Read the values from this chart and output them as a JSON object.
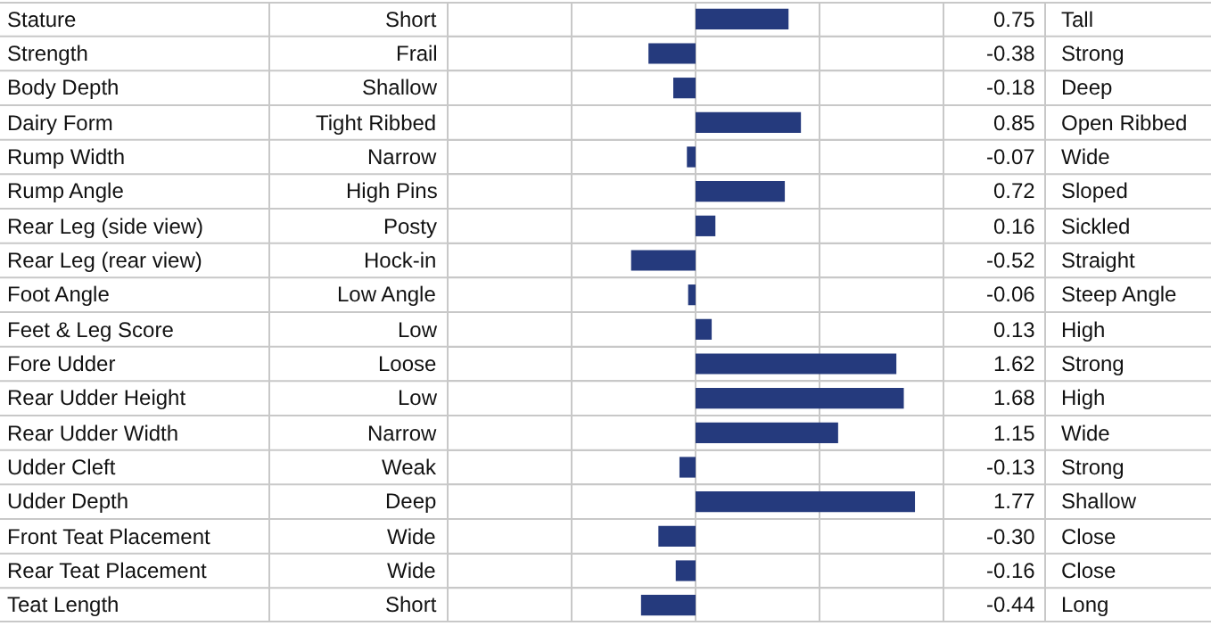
{
  "chart_data": {
    "type": "bar",
    "orientation": "horizontal",
    "categories": [
      "Stature",
      "Strength",
      "Body Depth",
      "Dairy Form",
      "Rump Width",
      "Rump Angle",
      "Rear Leg (side view)",
      "Rear Leg (rear view)",
      "Foot Angle",
      "Feet & Leg Score",
      "Fore Udder",
      "Rear Udder Height",
      "Rear Udder Width",
      "Udder Cleft",
      "Udder Depth",
      "Front Teat Placement",
      "Rear Teat Placement",
      "Teat Length"
    ],
    "values": [
      0.75,
      -0.38,
      -0.18,
      0.85,
      -0.07,
      0.72,
      0.16,
      -0.52,
      -0.06,
      0.13,
      1.62,
      1.68,
      1.15,
      -0.13,
      1.77,
      -0.3,
      -0.16,
      -0.44
    ],
    "value_labels": [
      "0.75",
      "-0.38",
      "-0.18",
      "0.85",
      "-0.07",
      "0.72",
      "0.16",
      "-0.52",
      "-0.06",
      "0.13",
      "1.62",
      "1.68",
      "1.15",
      "-0.13",
      "1.77",
      "-0.30",
      "-0.16",
      "-0.44"
    ],
    "annotations": [
      "Short",
      "Frail",
      "Shallow",
      "Tight Ribbed",
      "Narrow",
      "High Pins",
      "Posty",
      "Hock-in",
      "Low Angle",
      "Low",
      "Loose",
      "Low",
      "Narrow",
      "Weak",
      "Deep",
      "Wide",
      "Wide",
      "Short"
    ],
    "y2_categories": [
      "Tall",
      "Strong",
      "Deep",
      "Open Ribbed",
      "Wide",
      "Sloped",
      "Sickled",
      "Straight",
      "Steep Angle",
      "High",
      "Strong",
      "High",
      "Wide",
      "Strong",
      "Shallow",
      "Close",
      "Close",
      "Long"
    ],
    "color": "#253a7d",
    "xlim": [
      -2,
      2
    ],
    "xticks": [
      {
        "value": -2,
        "label": null
      },
      {
        "value": -1,
        "label": null
      },
      {
        "value": 0,
        "label": null
      },
      {
        "value": 1,
        "label": null
      },
      {
        "value": 2,
        "label": null
      }
    ],
    "grid": true,
    "legend": false
  }
}
